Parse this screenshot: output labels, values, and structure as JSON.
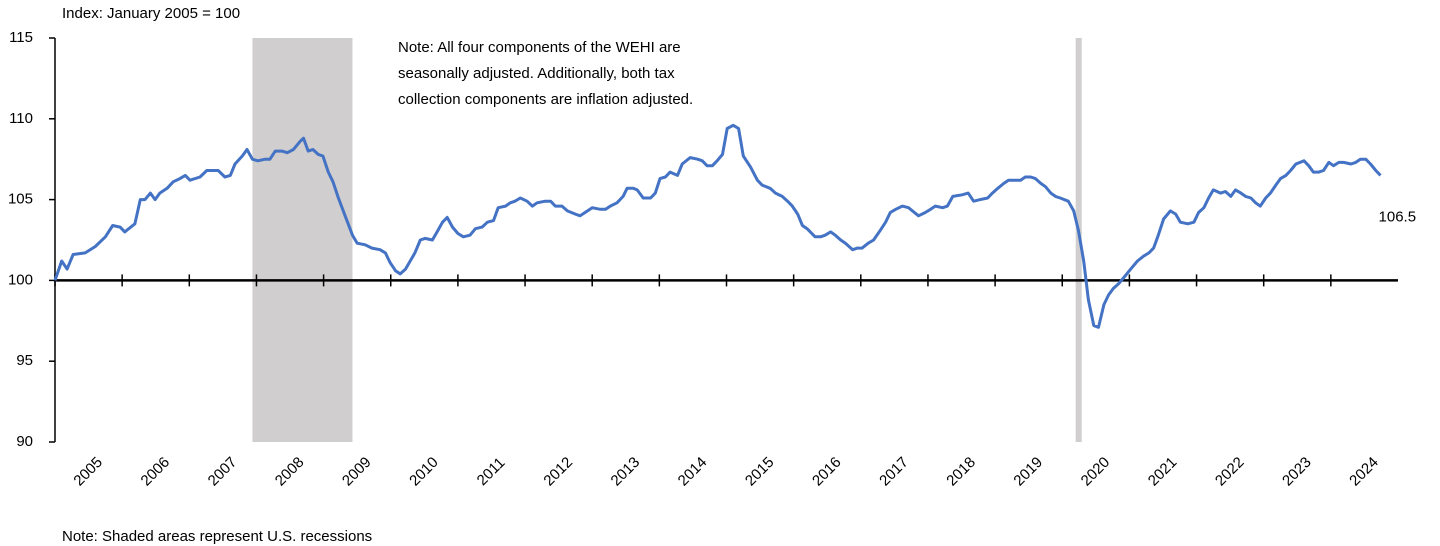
{
  "chart_data": {
    "type": "line",
    "subtitle": "Index: January 2005 = 100",
    "note": [
      "Note: All four components of the WEHI are",
      "seasonally adjusted. Additionally, both tax",
      "collection components are inflation adjusted."
    ],
    "footnote": "Note: Shaded areas represent U.S. recessions",
    "color": "#4472c4",
    "recession_color": "#d0cece",
    "recessions": [
      [
        2007.94,
        2009.43
      ],
      [
        2020.2,
        2020.29
      ]
    ],
    "xlim": [
      2005,
      2025
    ],
    "xticks": [
      2005,
      2006,
      2007,
      2008,
      2009,
      2010,
      2011,
      2012,
      2013,
      2014,
      2015,
      2016,
      2017,
      2018,
      2019,
      2020,
      2021,
      2022,
      2023,
      2024
    ],
    "ylim": [
      90,
      115
    ],
    "yticks": [
      90,
      95,
      100,
      105,
      110,
      115
    ],
    "baseline": 100,
    "x": [
      2005.0,
      2005.1,
      2005.18,
      2005.27,
      2005.45,
      2005.6,
      2005.75,
      2005.86,
      2005.97,
      2006.04,
      2006.19,
      2006.27,
      2006.34,
      2006.42,
      2006.49,
      2006.56,
      2006.67,
      2006.76,
      2006.86,
      2006.94,
      2007.01,
      2007.16,
      2007.26,
      2007.35,
      2007.43,
      2007.53,
      2007.61,
      2007.68,
      2007.79,
      2007.86,
      2007.94,
      2008.02,
      2008.13,
      2008.2,
      2008.28,
      2008.38,
      2008.46,
      2008.55,
      2008.65,
      2008.7,
      2008.77,
      2008.84,
      2008.92,
      2008.99,
      2009.07,
      2009.14,
      2009.22,
      2009.32,
      2009.43,
      2009.5,
      2009.62,
      2009.72,
      2009.84,
      2009.92,
      2009.99,
      2010.07,
      2010.14,
      2010.22,
      2010.29,
      2010.36,
      2010.44,
      2010.51,
      2010.62,
      2010.69,
      2010.77,
      2010.84,
      2010.92,
      2011.0,
      2011.08,
      2011.18,
      2011.26,
      2011.36,
      2011.44,
      2011.53,
      2011.6,
      2011.71,
      2011.78,
      2011.85,
      2011.93,
      2012.03,
      2012.11,
      2012.18,
      2012.3,
      2012.38,
      2012.45,
      2012.55,
      2012.63,
      2012.75,
      2012.82,
      2012.93,
      2013.0,
      2013.12,
      2013.2,
      2013.27,
      2013.37,
      2013.46,
      2013.52,
      2013.61,
      2013.67,
      2013.76,
      2013.87,
      2013.94,
      2014.01,
      2014.09,
      2014.16,
      2014.27,
      2014.34,
      2014.46,
      2014.57,
      2014.64,
      2014.71,
      2014.79,
      2014.86,
      2014.94,
      2015.01,
      2015.1,
      2015.18,
      2015.25,
      2015.36,
      2015.46,
      2015.53,
      2015.65,
      2015.73,
      2015.83,
      2015.91,
      2015.98,
      2016.06,
      2016.13,
      2016.2,
      2016.32,
      2016.4,
      2016.47,
      2016.55,
      2016.62,
      2016.7,
      2016.77,
      2016.88,
      2016.95,
      2017.02,
      2017.11,
      2017.19,
      2017.29,
      2017.37,
      2017.44,
      2017.52,
      2017.62,
      2017.71,
      2017.77,
      2017.86,
      2017.96,
      2018.04,
      2018.11,
      2018.22,
      2018.29,
      2018.37,
      2018.51,
      2018.6,
      2018.68,
      2018.78,
      2018.89,
      2018.96,
      2019.04,
      2019.13,
      2019.2,
      2019.3,
      2019.38,
      2019.45,
      2019.53,
      2019.6,
      2019.68,
      2019.75,
      2019.83,
      2019.9,
      2019.97,
      2020.09,
      2020.17,
      2020.24,
      2020.32,
      2020.39,
      2020.47,
      2020.54,
      2020.62,
      2020.69,
      2020.76,
      2020.84,
      2020.94,
      2021.02,
      2021.12,
      2021.21,
      2021.29,
      2021.36,
      2021.43,
      2021.51,
      2021.61,
      2021.69,
      2021.76,
      2021.87,
      2021.96,
      2022.03,
      2022.11,
      2022.18,
      2022.25,
      2022.36,
      2022.43,
      2022.51,
      2022.58,
      2022.66,
      2022.73,
      2022.81,
      2022.88,
      2022.95,
      2023.03,
      2023.1,
      2023.18,
      2023.25,
      2023.33,
      2023.4,
      2023.48,
      2023.6,
      2023.67,
      2023.74,
      2023.82,
      2023.89,
      2023.97,
      2024.04,
      2024.12,
      2024.19,
      2024.3,
      2024.37,
      2024.44,
      2024.52,
      2024.59,
      2024.67,
      2024.74
    ],
    "values": [
      100.0,
      101.2,
      100.7,
      101.6,
      101.7,
      102.1,
      102.7,
      103.4,
      103.3,
      103.0,
      103.5,
      105.0,
      105.0,
      105.4,
      105.0,
      105.4,
      105.7,
      106.1,
      106.3,
      106.5,
      106.2,
      106.4,
      106.8,
      106.8,
      106.8,
      106.4,
      106.5,
      107.2,
      107.7,
      108.1,
      107.5,
      107.4,
      107.5,
      107.5,
      108.0,
      108.0,
      107.9,
      108.1,
      108.6,
      108.8,
      108.0,
      108.1,
      107.8,
      107.7,
      106.7,
      106.1,
      105.1,
      104.0,
      102.8,
      102.3,
      102.2,
      102.0,
      101.9,
      101.7,
      101.1,
      100.6,
      100.4,
      100.7,
      101.2,
      101.7,
      102.5,
      102.6,
      102.5,
      103.0,
      103.6,
      103.9,
      103.3,
      102.9,
      102.7,
      102.8,
      103.2,
      103.3,
      103.6,
      103.7,
      104.5,
      104.6,
      104.8,
      104.9,
      105.1,
      104.9,
      104.6,
      104.8,
      104.9,
      104.9,
      104.6,
      104.6,
      104.3,
      104.1,
      104.0,
      104.3,
      104.5,
      104.4,
      104.4,
      104.6,
      104.8,
      105.2,
      105.7,
      105.7,
      105.6,
      105.1,
      105.1,
      105.4,
      106.3,
      106.4,
      106.7,
      106.5,
      107.2,
      107.6,
      107.5,
      107.4,
      107.1,
      107.1,
      107.4,
      107.8,
      109.4,
      109.6,
      109.4,
      107.7,
      107.0,
      106.2,
      105.9,
      105.7,
      105.4,
      105.2,
      104.9,
      104.6,
      104.1,
      103.4,
      103.2,
      102.7,
      102.7,
      102.8,
      103.0,
      102.8,
      102.5,
      102.3,
      101.9,
      102.0,
      102.0,
      102.3,
      102.5,
      103.1,
      103.6,
      104.2,
      104.4,
      104.6,
      104.5,
      104.3,
      104.0,
      104.2,
      104.4,
      104.6,
      104.5,
      104.6,
      105.2,
      105.3,
      105.4,
      104.9,
      105.0,
      105.1,
      105.4,
      105.7,
      106.0,
      106.2,
      106.2,
      106.2,
      106.4,
      106.4,
      106.3,
      106.0,
      105.8,
      105.4,
      105.2,
      105.1,
      104.9,
      104.3,
      103.1,
      101.2,
      98.8,
      97.2,
      97.1,
      98.5,
      99.1,
      99.5,
      99.8,
      100.3,
      100.7,
      101.2,
      101.5,
      101.7,
      102.0,
      102.8,
      103.8,
      104.3,
      104.1,
      103.6,
      103.5,
      103.6,
      104.2,
      104.5,
      105.1,
      105.6,
      105.4,
      105.5,
      105.2,
      105.6,
      105.4,
      105.2,
      105.1,
      104.8,
      104.6,
      105.1,
      105.4,
      105.9,
      106.3,
      106.5,
      106.8,
      107.2,
      107.4,
      107.1,
      106.7,
      106.7,
      106.8,
      107.3,
      107.1,
      107.3,
      107.3,
      107.2,
      107.3,
      107.5,
      107.5,
      107.2,
      106.8,
      106.5
    ]
  }
}
